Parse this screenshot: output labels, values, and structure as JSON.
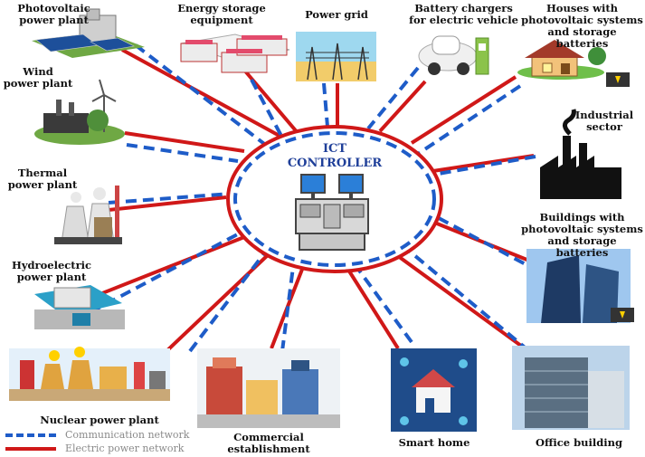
{
  "center": {
    "title": "ICT\nCONTROLLER",
    "icon": "control-console-icon"
  },
  "nodes": [
    {
      "id": "photovoltaic",
      "label": "Photovoltaic\npower plant",
      "icon": "solar-panel-icon"
    },
    {
      "id": "energy-storage",
      "label": "Energy storage\nequipment",
      "icon": "battery-rack-icon"
    },
    {
      "id": "power-grid",
      "label": "Power grid",
      "icon": "transmission-tower-icon"
    },
    {
      "id": "battery-chargers",
      "label": "Battery chargers\nfor electric vehicle",
      "icon": "ev-charger-icon"
    },
    {
      "id": "houses-pv",
      "label": "Houses with\nphotovoltaic systems\nand storage batteries",
      "icon": "house-icon"
    },
    {
      "id": "wind",
      "label": "Wind\npower plant",
      "icon": "wind-turbine-icon"
    },
    {
      "id": "industrial",
      "label": "Industrial\nsector",
      "icon": "factory-icon"
    },
    {
      "id": "thermal",
      "label": "Thermal\npower plant",
      "icon": "cooling-tower-icon"
    },
    {
      "id": "buildings-pv",
      "label": "Buildings with\nphotovoltaic systems\nand storage batteries",
      "icon": "skyscraper-icon"
    },
    {
      "id": "hydro",
      "label": "Hydroelectric\npower plant",
      "icon": "dam-icon"
    },
    {
      "id": "nuclear",
      "label": "Nuclear power plant",
      "icon": "nuclear-plant-icon"
    },
    {
      "id": "commercial",
      "label": "Commercial\nestablishment",
      "icon": "shop-icon"
    },
    {
      "id": "smart-home",
      "label": "Smart home",
      "icon": "smart-home-icon"
    },
    {
      "id": "office",
      "label": "Office building",
      "icon": "office-building-icon"
    }
  ],
  "legend": [
    {
      "label": "Communication network",
      "style": "dashed",
      "color": "#1e5cc8"
    },
    {
      "label": "Electric power network",
      "style": "solid",
      "color": "#d01818"
    }
  ],
  "colors": {
    "communication": "#1e5cc8",
    "electric": "#d01818"
  }
}
